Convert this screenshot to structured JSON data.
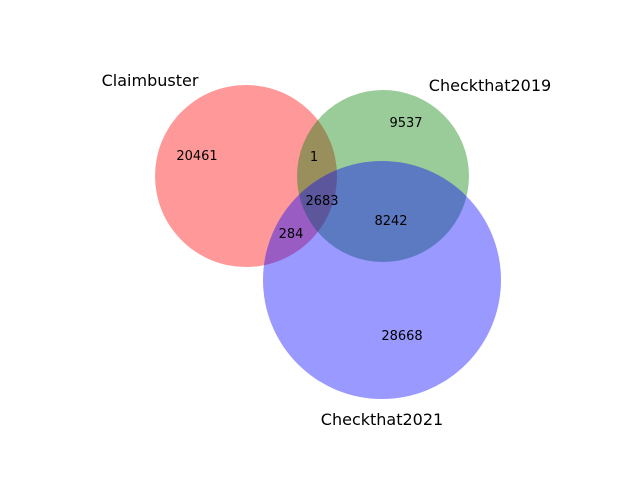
{
  "chart_data": {
    "type": "venn3",
    "sets": [
      {
        "name": "Claimbuster",
        "color": "#ff0000",
        "alpha": 0.4
      },
      {
        "name": "Checkthat2019",
        "color": "#008000",
        "alpha": 0.4
      },
      {
        "name": "Checkthat2021",
        "color": "#0000ff",
        "alpha": 0.4
      }
    ],
    "regions": {
      "claimbuster_only": "20461",
      "checkthat2019_only": "9537",
      "checkthat2021_only": "28668",
      "claimbuster_checkthat2019": "1",
      "claimbuster_checkthat2021": "284",
      "checkthat2019_checkthat2021": "8242",
      "all_three": "2683"
    }
  }
}
